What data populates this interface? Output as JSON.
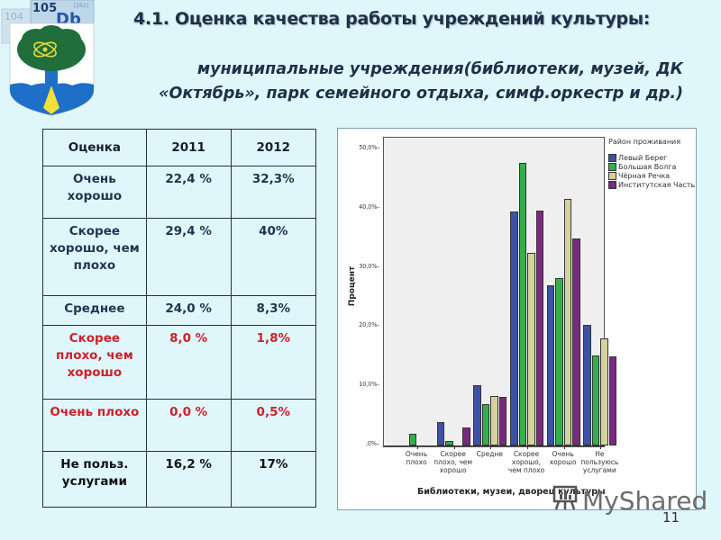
{
  "header": {
    "title": "4.1. Оценка качества работы учреждений культуры:",
    "subtitle_line1": "муниципальные учреждения(библиотеки, музей, ДК",
    "subtitle_line2": "«Октябрь», парк семейного отдыха, симф.оркестр и др.)"
  },
  "logo": {
    "element_number_1": "104",
    "element_number_2": "105",
    "element_symbol": "Db",
    "element_mass": "[262]"
  },
  "table": {
    "headers": [
      "Оценка",
      "2011",
      "2012"
    ],
    "rows": [
      {
        "label": "Очень хорошо",
        "y2011": "22,4 %",
        "y2012": "32,3%"
      },
      {
        "label": "Скорее хорошо, чем плохо",
        "y2011": "29,4 %",
        "y2012": "40%"
      },
      {
        "label": "Среднее",
        "y2011": "24,0 %",
        "y2012": "8,3%"
      },
      {
        "label": "Скорее плохо, чем хорошо",
        "y2011": "8,0 %",
        "y2012": "1,8%"
      },
      {
        "label": "Очень плохо",
        "y2011": "0,0 %",
        "y2012": "0,5%"
      },
      {
        "label": "Не польз. услугами",
        "y2011": "16,2 %",
        "y2012": "17%"
      }
    ],
    "colors": {
      "normal": "#1f3550",
      "negative": "#d0202a",
      "neutral": "#111111"
    }
  },
  "chart_data": {
    "type": "bar",
    "title": "",
    "xlabel": "Библиотеки, музеи, дворец культуры",
    "ylabel": "Процент",
    "ylim": [
      0,
      50
    ],
    "yticks": [
      ",0%",
      "10,0%",
      "20,0%",
      "30,0%",
      "40,0%",
      "50,0%"
    ],
    "categories": [
      "Очень плохо",
      "Скорее плохо, чем хорошо",
      "Средне",
      "Скорее хорошо, чем плохо",
      "Очень хорошо",
      "Не пользуюсь услугами"
    ],
    "legend_title": "Район проживания",
    "legend_position": "right",
    "grid": false,
    "series": [
      {
        "name": "Левый Берег",
        "color": "#3b53a4",
        "values": [
          0,
          4.0,
          10.2,
          39.5,
          27.0,
          20.3
        ]
      },
      {
        "name": "Большая Волга",
        "color": "#33b04a",
        "values": [
          2.0,
          0.8,
          7.0,
          47.7,
          28.2,
          15.2
        ]
      },
      {
        "name": "Чёрная Речка",
        "color": "#d6d2a0",
        "values": [
          0,
          0,
          8.4,
          32.5,
          41.6,
          18.1
        ]
      },
      {
        "name": "Институтская Часть",
        "color": "#7a2a7e",
        "values": [
          0,
          3.0,
          8.2,
          39.6,
          34.9,
          15.1
        ]
      }
    ]
  },
  "footer": {
    "page_number": "11",
    "watermark": "MyShared"
  }
}
